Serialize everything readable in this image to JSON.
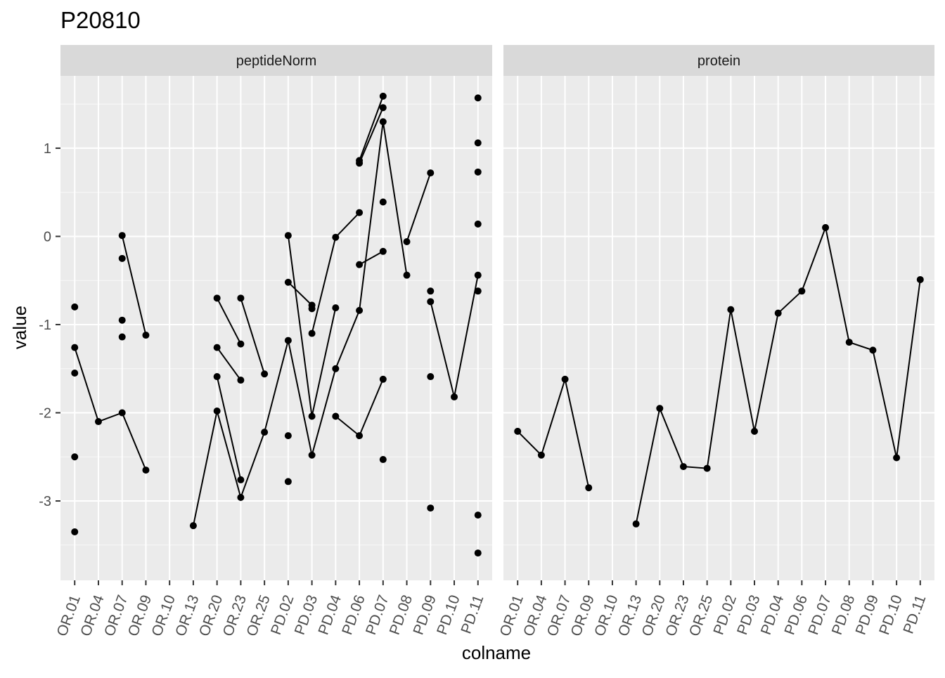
{
  "chart_data": {
    "type": "line",
    "title": "P20810",
    "xlabel": "colname",
    "ylabel": "value",
    "ylim": [
      -3.9,
      1.82
    ],
    "y_ticks": [
      1,
      0,
      -1,
      -2,
      -3
    ],
    "y_tick_labels": [
      "1",
      "0",
      "-1",
      "-2",
      "-3"
    ],
    "categories": [
      "OR.01",
      "OR.04",
      "OR.07",
      "OR.09",
      "OR.10",
      "OR.13",
      "OR.20",
      "OR.23",
      "OR.25",
      "PD.02",
      "PD.03",
      "PD.04",
      "PD.06",
      "PD.07",
      "PD.08",
      "PD.09",
      "PD.10",
      "PD.11"
    ],
    "grid": true,
    "panels": [
      {
        "strip": "peptideNorm",
        "lines": [
          [
            [
              "OR.01",
              -1.26
            ],
            [
              "OR.04",
              -2.1
            ],
            [
              "OR.07",
              -2.0
            ],
            [
              "OR.09",
              -2.65
            ]
          ],
          [
            [
              "OR.07",
              0.01
            ],
            [
              "OR.09",
              -1.12
            ]
          ],
          [
            [
              "OR.13",
              -3.28
            ],
            [
              "OR.20",
              -1.98
            ],
            [
              "OR.23",
              -2.96
            ],
            [
              "OR.25",
              -2.22
            ],
            [
              "PD.02",
              -1.18
            ],
            [
              "PD.03",
              -2.48
            ],
            [
              "PD.04",
              -1.5
            ],
            [
              "PD.06",
              -0.84
            ],
            [
              "PD.07",
              1.3
            ],
            [
              "PD.08",
              -0.44
            ]
          ],
          [
            [
              "OR.20",
              -0.7
            ],
            [
              "OR.23",
              -1.22
            ]
          ],
          [
            [
              "OR.20",
              -1.26
            ],
            [
              "OR.23",
              -1.63
            ]
          ],
          [
            [
              "OR.20",
              -1.59
            ],
            [
              "OR.23",
              -2.76
            ]
          ],
          [
            [
              "OR.23",
              -0.7
            ],
            [
              "OR.25",
              -1.56
            ]
          ],
          [
            [
              "PD.02",
              0.01
            ],
            [
              "PD.03",
              -2.04
            ],
            [
              "PD.04",
              -0.81
            ]
          ],
          [
            [
              "PD.02",
              -0.52
            ],
            [
              "PD.03",
              -0.78
            ]
          ],
          [
            [
              "PD.03",
              -1.1
            ],
            [
              "PD.04",
              -0.01
            ],
            [
              "PD.06",
              0.27
            ]
          ],
          [
            [
              "PD.04",
              -2.04
            ],
            [
              "PD.06",
              -2.26
            ],
            [
              "PD.07",
              -1.62
            ]
          ],
          [
            [
              "PD.06",
              -0.32
            ],
            [
              "PD.07",
              -0.17
            ]
          ],
          [
            [
              "PD.06",
              0.83
            ],
            [
              "PD.07",
              1.46
            ]
          ],
          [
            [
              "PD.06",
              0.86
            ],
            [
              "PD.07",
              1.59
            ]
          ],
          [
            [
              "PD.08",
              -0.06
            ],
            [
              "PD.09",
              0.72
            ]
          ],
          [
            [
              "PD.09",
              -0.74
            ],
            [
              "PD.10",
              -1.82
            ],
            [
              "PD.11",
              -0.44
            ]
          ]
        ],
        "points": [
          [
            "OR.01",
            -0.8
          ],
          [
            "OR.01",
            -1.26
          ],
          [
            "OR.01",
            -1.55
          ],
          [
            "OR.01",
            -2.5
          ],
          [
            "OR.01",
            -3.35
          ],
          [
            "OR.04",
            -2.1
          ],
          [
            "OR.07",
            0.01
          ],
          [
            "OR.07",
            -0.25
          ],
          [
            "OR.07",
            -0.95
          ],
          [
            "OR.07",
            -1.14
          ],
          [
            "OR.07",
            -2.0
          ],
          [
            "OR.09",
            -1.12
          ],
          [
            "OR.09",
            -2.65
          ],
          [
            "OR.13",
            -3.28
          ],
          [
            "OR.20",
            -0.7
          ],
          [
            "OR.20",
            -1.26
          ],
          [
            "OR.20",
            -1.59
          ],
          [
            "OR.20",
            -1.98
          ],
          [
            "OR.23",
            -0.7
          ],
          [
            "OR.23",
            -1.22
          ],
          [
            "OR.23",
            -1.63
          ],
          [
            "OR.23",
            -2.76
          ],
          [
            "OR.23",
            -2.96
          ],
          [
            "OR.25",
            -1.56
          ],
          [
            "OR.25",
            -2.22
          ],
          [
            "PD.02",
            0.01
          ],
          [
            "PD.02",
            -0.52
          ],
          [
            "PD.02",
            -1.18
          ],
          [
            "PD.02",
            -2.26
          ],
          [
            "PD.02",
            -2.78
          ],
          [
            "PD.03",
            -0.78
          ],
          [
            "PD.03",
            -0.82
          ],
          [
            "PD.03",
            -1.1
          ],
          [
            "PD.03",
            -2.04
          ],
          [
            "PD.03",
            -2.48
          ],
          [
            "PD.04",
            -0.01
          ],
          [
            "PD.04",
            -0.81
          ],
          [
            "PD.04",
            -1.5
          ],
          [
            "PD.04",
            -2.04
          ],
          [
            "PD.06",
            0.86
          ],
          [
            "PD.06",
            0.83
          ],
          [
            "PD.06",
            0.27
          ],
          [
            "PD.06",
            -0.32
          ],
          [
            "PD.06",
            -0.84
          ],
          [
            "PD.06",
            -2.26
          ],
          [
            "PD.07",
            1.59
          ],
          [
            "PD.07",
            1.46
          ],
          [
            "PD.07",
            1.3
          ],
          [
            "PD.07",
            0.39
          ],
          [
            "PD.07",
            -0.17
          ],
          [
            "PD.07",
            -1.62
          ],
          [
            "PD.07",
            -2.53
          ],
          [
            "PD.08",
            -0.06
          ],
          [
            "PD.08",
            -0.44
          ],
          [
            "PD.09",
            0.72
          ],
          [
            "PD.09",
            -0.62
          ],
          [
            "PD.09",
            -0.74
          ],
          [
            "PD.09",
            -1.59
          ],
          [
            "PD.09",
            -3.08
          ],
          [
            "PD.10",
            -1.82
          ],
          [
            "PD.11",
            1.57
          ],
          [
            "PD.11",
            1.06
          ],
          [
            "PD.11",
            0.73
          ],
          [
            "PD.11",
            0.14
          ],
          [
            "PD.11",
            -0.44
          ],
          [
            "PD.11",
            -0.62
          ],
          [
            "PD.11",
            -3.16
          ],
          [
            "PD.11",
            -3.59
          ]
        ]
      },
      {
        "strip": "protein",
        "lines": [
          [
            [
              "OR.01",
              -2.21
            ],
            [
              "OR.04",
              -2.48
            ],
            [
              "OR.07",
              -1.62
            ],
            [
              "OR.09",
              -2.85
            ]
          ],
          [
            [
              "OR.13",
              -3.26
            ],
            [
              "OR.20",
              -1.95
            ],
            [
              "OR.23",
              -2.61
            ],
            [
              "OR.25",
              -2.63
            ],
            [
              "PD.02",
              -0.83
            ],
            [
              "PD.03",
              -2.21
            ],
            [
              "PD.04",
              -0.87
            ],
            [
              "PD.06",
              -0.62
            ],
            [
              "PD.07",
              0.1
            ],
            [
              "PD.08",
              -1.2
            ],
            [
              "PD.09",
              -1.29
            ],
            [
              "PD.10",
              -2.51
            ],
            [
              "PD.11",
              -0.49
            ]
          ]
        ],
        "points": [
          [
            "OR.01",
            -2.21
          ],
          [
            "OR.04",
            -2.48
          ],
          [
            "OR.07",
            -1.62
          ],
          [
            "OR.09",
            -2.85
          ],
          [
            "OR.13",
            -3.26
          ],
          [
            "OR.20",
            -1.95
          ],
          [
            "OR.23",
            -2.61
          ],
          [
            "OR.25",
            -2.63
          ],
          [
            "PD.02",
            -0.83
          ],
          [
            "PD.03",
            -2.21
          ],
          [
            "PD.04",
            -0.87
          ],
          [
            "PD.06",
            -0.62
          ],
          [
            "PD.07",
            0.1
          ],
          [
            "PD.08",
            -1.2
          ],
          [
            "PD.09",
            -1.29
          ],
          [
            "PD.10",
            -2.51
          ],
          [
            "PD.11",
            -0.49
          ]
        ]
      }
    ]
  },
  "colors": {
    "panel_background": "#ebebeb",
    "strip_background": "#d9d9d9",
    "grid_major": "#ffffff",
    "tick_text": "#4d4d4d",
    "marks": "#000000"
  }
}
